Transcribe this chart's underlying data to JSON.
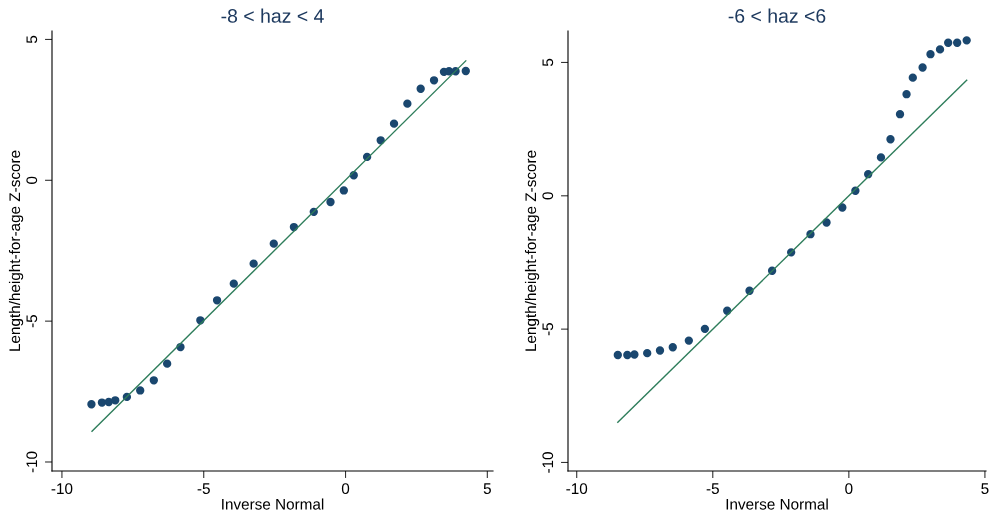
{
  "chart_data": [
    {
      "type": "scatter",
      "title": "-8 < haz < 4",
      "xlabel": "Inverse Normal",
      "ylabel": "Length/height-for-age Z-score",
      "xlim": [
        -10.35,
        5.2
      ],
      "ylim": [
        -10.32,
        5.3
      ],
      "xticks": [
        -10,
        -5,
        0,
        5
      ],
      "yticks": [
        -10,
        -5,
        0,
        5
      ],
      "grid": false,
      "legend": false,
      "series": [
        {
          "marker": "circle",
          "color": "#1a476f",
          "x": [
            -8.96,
            -8.59,
            -8.35,
            -8.12,
            -7.71,
            -7.24,
            -6.76,
            -6.29,
            -5.82,
            -5.12,
            -4.53,
            -3.94,
            -3.24,
            -2.53,
            -1.82,
            -1.12,
            -0.53,
            -0.06,
            0.29,
            0.76,
            1.24,
            1.71,
            2.18,
            2.65,
            3.12,
            3.47,
            3.65,
            3.88,
            4.24
          ],
          "values": [
            -7.95,
            -7.89,
            -7.87,
            -7.81,
            -7.69,
            -7.46,
            -7.1,
            -6.51,
            -5.92,
            -4.97,
            -4.26,
            -3.67,
            -2.96,
            -2.25,
            -1.66,
            -1.12,
            -0.77,
            -0.36,
            0.18,
            0.83,
            1.42,
            2.01,
            2.72,
            3.25,
            3.55,
            3.85,
            3.87,
            3.87,
            3.88
          ]
        },
        {
          "type": "line",
          "color": "#2e7d5b",
          "line_style": "solid",
          "x": [
            -8.94,
            4.24
          ],
          "values": [
            -8.91,
            4.24
          ]
        }
      ]
    },
    {
      "type": "scatter",
      "title": "-6 < haz <6",
      "xlabel": "Inverse Normal",
      "ylabel": "Length/height-for-age Z-score",
      "xlim": [
        -10.32,
        5.04
      ],
      "ylim": [
        -10.32,
        6.18
      ],
      "xticks": [
        -10,
        -5,
        0,
        5
      ],
      "yticks": [
        -10,
        -5,
        0,
        5
      ],
      "grid": false,
      "legend": false,
      "series": [
        {
          "marker": "circle",
          "color": "#1a476f",
          "x": [
            -8.49,
            -8.14,
            -7.88,
            -7.41,
            -6.94,
            -6.47,
            -5.88,
            -5.29,
            -4.47,
            -3.65,
            -2.82,
            -2.12,
            -1.41,
            -0.82,
            -0.24,
            0.24,
            0.71,
            1.18,
            1.53,
            1.88,
            2.12,
            2.35,
            2.71,
            3.0,
            3.35,
            3.65,
            3.98,
            4.33
          ],
          "values": [
            -5.97,
            -5.97,
            -5.95,
            -5.9,
            -5.8,
            -5.68,
            -5.43,
            -4.99,
            -4.31,
            -3.56,
            -2.81,
            -2.12,
            -1.44,
            -1.0,
            -0.44,
            0.19,
            0.81,
            1.44,
            2.12,
            3.06,
            3.81,
            4.43,
            4.81,
            5.31,
            5.49,
            5.74,
            5.74,
            5.83
          ]
        },
        {
          "type": "line",
          "color": "#2e7d5b",
          "line_style": "solid",
          "x": [
            -8.49,
            4.33
          ],
          "values": [
            -8.49,
            4.33
          ]
        }
      ]
    }
  ]
}
